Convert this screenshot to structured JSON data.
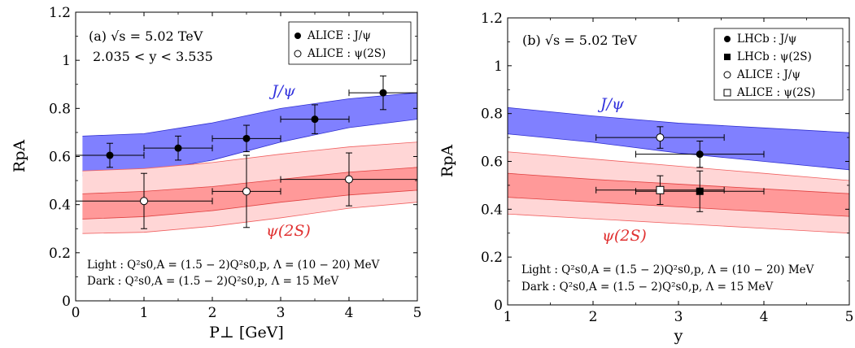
{
  "chart_data": [
    {
      "type": "line",
      "panel_text": [
        "(a) √s = 5.02 TeV",
        "2.035 < y < 3.535"
      ],
      "xlabel": "P⊥ [GeV]",
      "ylabel": "RpA",
      "xlim": [
        0,
        5
      ],
      "ylim": [
        0,
        1.2
      ],
      "x_ticks": [
        "0",
        "1",
        "2",
        "3",
        "4",
        "5"
      ],
      "y_ticks": [
        "0",
        "0.2",
        "0.4",
        "0.6",
        "0.8",
        "1",
        "1.2"
      ],
      "grid": false,
      "legend_position": "top-right",
      "legend": [
        {
          "marker": "filled-circle",
          "label": "ALICE : J/ψ"
        },
        {
          "marker": "open-circle",
          "label": "ALICE : ψ(2S)"
        }
      ],
      "notes": [
        "Light : Q²s0,A = (1.5 − 2)Q²s0,p, Λ = (10 − 20) MeV",
        "Dark : Q²s0,A = (1.5 − 2)Q²s0,p, Λ = 15 MeV"
      ],
      "bands": [
        {
          "label": "J/ψ",
          "color": "#8080ff",
          "x": [
            0.1,
            1,
            2,
            3,
            4,
            5
          ],
          "upper": [
            0.685,
            0.695,
            0.74,
            0.8,
            0.84,
            0.865
          ],
          "lower": [
            0.52,
            0.535,
            0.585,
            0.66,
            0.72,
            0.755
          ]
        },
        {
          "label": "",
          "color": "#ffd6d6",
          "x": [
            0.1,
            1,
            2,
            3,
            4,
            5
          ],
          "upper": [
            0.54,
            0.55,
            0.575,
            0.61,
            0.64,
            0.66
          ],
          "lower": [
            0.28,
            0.285,
            0.31,
            0.345,
            0.385,
            0.41
          ]
        },
        {
          "label": "ψ(2S)",
          "color": "#ff9999",
          "x": [
            0.1,
            1,
            2,
            3,
            4,
            5
          ],
          "upper": [
            0.445,
            0.455,
            0.475,
            0.505,
            0.535,
            0.555
          ],
          "lower": [
            0.34,
            0.35,
            0.375,
            0.41,
            0.44,
            0.46
          ]
        }
      ],
      "series": [
        {
          "name": "ALICE : J/ψ",
          "marker": "filled-circle",
          "x": [
            0.5,
            1.5,
            2.5,
            3.5,
            4.5
          ],
          "y": [
            0.605,
            0.635,
            0.675,
            0.755,
            0.865
          ],
          "xerr": [
            0.5,
            0.5,
            0.5,
            0.5,
            0.5
          ],
          "yerr": [
            0.05,
            0.05,
            0.055,
            0.06,
            0.07
          ]
        },
        {
          "name": "ALICE : ψ(2S)",
          "marker": "open-circle",
          "x": [
            1.0,
            2.5,
            4.0
          ],
          "y": [
            0.415,
            0.455,
            0.505
          ],
          "xerr": [
            1.0,
            0.5,
            1.0
          ],
          "yerr": [
            0.115,
            0.15,
            0.11
          ]
        }
      ]
    },
    {
      "type": "line",
      "panel_text": [
        "(b) √s = 5.02 TeV"
      ],
      "xlabel": "y",
      "ylabel": "RpA",
      "xlim": [
        1,
        5
      ],
      "ylim": [
        0,
        1.2
      ],
      "x_ticks": [
        "1",
        "2",
        "3",
        "4",
        "5"
      ],
      "y_ticks": [
        "0",
        "0.2",
        "0.4",
        "0.6",
        "0.8",
        "1",
        "1.2"
      ],
      "grid": false,
      "legend_position": "top-right",
      "legend": [
        {
          "marker": "filled-circle",
          "label": "LHCb : J/ψ"
        },
        {
          "marker": "filled-square",
          "label": "LHCb : ψ(2S)"
        },
        {
          "marker": "open-circle",
          "label": "ALICE : J/ψ"
        },
        {
          "marker": "open-square",
          "label": "ALICE : ψ(2S)"
        }
      ],
      "notes": [
        "Light : Q²s0,A = (1.5 − 2)Q²s0,p, Λ = (10 − 20) MeV",
        "Dark : Q²s0,A = (1.5 − 2)Q²s0,p, Λ = 15 MeV"
      ],
      "bands": [
        {
          "label": "J/ψ",
          "color": "#8080ff",
          "x": [
            1,
            2,
            3,
            4,
            5
          ],
          "upper": [
            0.825,
            0.79,
            0.76,
            0.74,
            0.72
          ],
          "lower": [
            0.715,
            0.68,
            0.635,
            0.6,
            0.565
          ]
        },
        {
          "label": "",
          "color": "#ffd6d6",
          "x": [
            1,
            2,
            3,
            4,
            5
          ],
          "upper": [
            0.64,
            0.61,
            0.58,
            0.55,
            0.52
          ],
          "lower": [
            0.38,
            0.36,
            0.34,
            0.32,
            0.3
          ]
        },
        {
          "label": "ψ(2S)",
          "color": "#ff9999",
          "x": [
            1,
            2,
            3,
            4,
            5
          ],
          "upper": [
            0.55,
            0.525,
            0.505,
            0.485,
            0.465
          ],
          "lower": [
            0.45,
            0.43,
            0.41,
            0.39,
            0.37
          ]
        }
      ],
      "series": [
        {
          "name": "LHCb : J/ψ",
          "marker": "filled-circle",
          "x": [
            3.25
          ],
          "y": [
            0.63
          ],
          "xerr": [
            0.75
          ],
          "yerr": [
            0.055
          ]
        },
        {
          "name": "LHCb : ψ(2S)",
          "marker": "filled-square",
          "x": [
            3.25
          ],
          "y": [
            0.475
          ],
          "xerr": [
            0.75
          ],
          "yerr": [
            0.085
          ]
        },
        {
          "name": "ALICE : J/ψ",
          "marker": "open-circle",
          "x": [
            2.785
          ],
          "y": [
            0.7
          ],
          "xerr": [
            0.75
          ],
          "yerr": [
            0.045
          ]
        },
        {
          "name": "ALICE : ψ(2S)",
          "marker": "open-square",
          "x": [
            2.785
          ],
          "y": [
            0.48
          ],
          "xerr": [
            0.75
          ],
          "yerr": [
            0.06
          ]
        }
      ]
    }
  ]
}
